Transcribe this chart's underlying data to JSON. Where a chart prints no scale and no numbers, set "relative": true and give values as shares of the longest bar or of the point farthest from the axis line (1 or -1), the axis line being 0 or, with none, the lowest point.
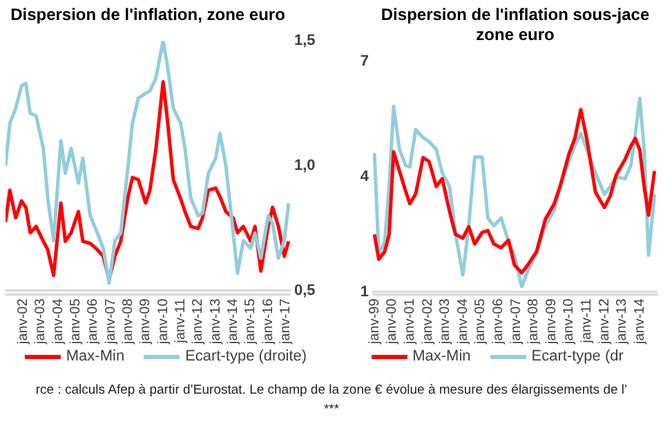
{
  "chart_data": [
    {
      "type": "line",
      "title": "Dispersion de l'inflation, zone euro",
      "annotations": [
        "rce : calculs Afep à partir d’Eurostat. Le champ de la zone € évolue à mesure des élargissements de l’",
        "***"
      ],
      "legend": "bottom",
      "marker": "none",
      "relative": true,
      "tick_labels": "x",
      "x": [
        "2001-01",
        "2001-04",
        "2001-08",
        "2001-12",
        "2002-03",
        "2002-06",
        "2002-10",
        "2003-03",
        "2003-06",
        "2003-10",
        "2004-03",
        "2004-06",
        "2004-10",
        "2005-03",
        "2005-06",
        "2005-11",
        "2006-04",
        "2006-08",
        "2006-12",
        "2007-04",
        "2007-08",
        "2008-01",
        "2008-04",
        "2008-08",
        "2009-01",
        "2009-04",
        "2009-08",
        "2010-01",
        "2010-04",
        "2010-08",
        "2011-01",
        "2011-04",
        "2011-08",
        "2012-01",
        "2012-04",
        "2012-08",
        "2013-01",
        "2013-04",
        "2013-08",
        "2014-01",
        "2014-04",
        "2014-08",
        "2015-01",
        "2015-04",
        "2015-08",
        "2016-01",
        "2016-04",
        "2016-08",
        "2016-12",
        "2017-03"
      ],
      "xlim": [
        "2001-01",
        "2017-04"
      ],
      "xticks": [
        {
          "value": "2002-01",
          "label": "janv-02"
        },
        {
          "value": "2003-01",
          "label": "janv-03"
        },
        {
          "value": "2004-01",
          "label": "janv-04"
        },
        {
          "value": "2005-01",
          "label": "janv-05"
        },
        {
          "value": "2006-01",
          "label": "janv-06"
        },
        {
          "value": "2007-01",
          "label": "janv-07"
        },
        {
          "value": "2008-01",
          "label": "janv-08"
        },
        {
          "value": "2009-01",
          "label": "janv-09"
        },
        {
          "value": "2010-01",
          "label": "janv-10"
        },
        {
          "value": "2011-01",
          "label": "janv-11"
        },
        {
          "value": "2012-01",
          "label": "janv-12"
        },
        {
          "value": "2013-01",
          "label": "janv-13"
        },
        {
          "value": "2014-01",
          "label": "janv-14"
        },
        {
          "value": "2015-01",
          "label": "janv-15"
        },
        {
          "value": "2016-01",
          "label": "janv-16"
        },
        {
          "value": "2017-01",
          "label": "janv-17"
        }
      ],
      "series": [
        {
          "name": "Max-Min",
          "color": "#ff0000",
          "values": [
            0.34,
            0.49,
            0.36,
            0.44,
            0.41,
            0.29,
            0.32,
            0.25,
            0.21,
            0.09,
            0.43,
            0.25,
            0.29,
            0.39,
            0.25,
            0.24,
            0.21,
            0.18,
            0.07,
            0.18,
            0.25,
            0.46,
            0.55,
            0.54,
            0.43,
            0.49,
            0.68,
            1.0,
            0.82,
            0.54,
            0.45,
            0.39,
            0.32,
            0.31,
            0.36,
            0.49,
            0.5,
            0.46,
            0.39,
            0.36,
            0.29,
            0.32,
            0.25,
            0.32,
            0.11,
            0.32,
            0.41,
            0.32,
            0.18,
            0.25
          ]
        }
      ]
    },
    {
      "type": "line",
      "legend": "bottom",
      "marker": "none",
      "tick_labels": "y",
      "x": [
        "2001-01",
        "2001-04",
        "2001-08",
        "2001-12",
        "2002-03",
        "2002-06",
        "2002-10",
        "2003-03",
        "2003-06",
        "2003-10",
        "2004-03",
        "2004-06",
        "2004-10",
        "2005-03",
        "2005-06",
        "2005-11",
        "2006-04",
        "2006-08",
        "2006-12",
        "2007-04",
        "2007-08",
        "2008-01",
        "2008-04",
        "2008-08",
        "2009-01",
        "2009-04",
        "2009-08",
        "2010-01",
        "2010-04",
        "2010-08",
        "2011-01",
        "2011-04",
        "2011-08",
        "2012-01",
        "2012-04",
        "2012-08",
        "2013-01",
        "2013-04",
        "2013-08",
        "2014-01",
        "2014-04",
        "2014-08",
        "2015-01",
        "2015-04",
        "2015-08",
        "2016-01",
        "2016-04",
        "2016-08",
        "2016-12",
        "2017-03"
      ],
      "xlim": [
        "2001-01",
        "2017-04"
      ],
      "y2lim": [
        0.5,
        1.5
      ],
      "y2ticks": [
        {
          "value": 0.5,
          "label": "0,5"
        },
        {
          "value": 1,
          "label": "1,0"
        },
        {
          "value": 1.5,
          "label": "1,5"
        }
      ],
      "series": [
        {
          "name": "Ecart-type (droite)",
          "color": "#92cddc",
          "axis": "y2",
          "values": [
            1.0,
            1.17,
            1.23,
            1.32,
            1.33,
            1.21,
            1.2,
            1.07,
            0.87,
            0.7,
            1.1,
            0.97,
            1.07,
            0.93,
            1.03,
            0.8,
            0.73,
            0.67,
            0.53,
            0.7,
            0.73,
            1.0,
            1.17,
            1.27,
            1.29,
            1.3,
            1.35,
            1.5,
            1.4,
            1.23,
            1.17,
            1.07,
            0.87,
            0.8,
            0.81,
            0.97,
            1.03,
            1.13,
            1.0,
            0.73,
            0.57,
            0.7,
            0.67,
            0.73,
            0.63,
            0.8,
            0.77,
            0.63,
            0.7,
            0.85
          ]
        }
      ]
    },
    {
      "type": "line",
      "legend": "bottom",
      "marker": "none",
      "tick_labels": "y",
      "x": [
        "1999-01",
        "1999-04",
        "1999-08",
        "1999-11",
        "2000-02",
        "2000-06",
        "2000-10",
        "2001-01",
        "2001-05",
        "2001-10",
        "2002-02",
        "2002-07",
        "2002-11",
        "2003-04",
        "2003-08",
        "2004-01",
        "2004-05",
        "2004-09",
        "2005-02",
        "2005-06",
        "2005-10",
        "2006-03",
        "2006-08",
        "2006-12",
        "2007-05",
        "2007-09",
        "2008-03",
        "2008-09",
        "2009-03",
        "2009-07",
        "2010-01",
        "2010-05",
        "2010-09",
        "2011-01",
        "2011-07",
        "2012-01",
        "2012-05",
        "2012-09",
        "2013-03",
        "2013-07",
        "2013-10",
        "2014-01",
        "2014-04",
        "2014-07",
        "2014-11"
      ],
      "xlim": [
        "1998-12",
        "2015-01"
      ],
      "ylim": [
        1,
        7
      ],
      "yticks": [
        1,
        4,
        7
      ],
      "series": [
        {
          "name": "Max-Min",
          "color": "#ff0000",
          "values": [
            2.5,
            1.85,
            2.05,
            2.5,
            4.65,
            4.15,
            3.65,
            3.3,
            3.55,
            4.5,
            4.4,
            3.75,
            3.95,
            3.1,
            2.5,
            2.4,
            2.7,
            2.25,
            2.55,
            2.6,
            2.25,
            2.15,
            2.35,
            1.7,
            1.5,
            1.7,
            2.05,
            2.9,
            3.3,
            3.75,
            4.6,
            5.0,
            5.75,
            5.0,
            3.6,
            3.2,
            3.5,
            4.05,
            4.45,
            4.8,
            5.0,
            4.7,
            3.75,
            3.0,
            4.15
          ]
        }
      ]
    },
    {
      "type": "line",
      "title": "Dispersion de l'inflation sous-jace\nzone euro",
      "legend": "bottom",
      "marker": "none",
      "relative": true,
      "tick_labels": "x",
      "x": [
        "1999-01",
        "1999-04",
        "1999-08",
        "1999-11",
        "2000-02",
        "2000-06",
        "2000-10",
        "2001-01",
        "2001-05",
        "2001-10",
        "2002-02",
        "2002-07",
        "2002-11",
        "2003-04",
        "2003-08",
        "2004-01",
        "2004-05",
        "2004-09",
        "2005-02",
        "2005-06",
        "2005-10",
        "2006-03",
        "2006-08",
        "2006-12",
        "2007-05",
        "2007-09",
        "2008-03",
        "2008-09",
        "2009-03",
        "2009-07",
        "2010-01",
        "2010-05",
        "2010-09",
        "2011-01",
        "2011-07",
        "2012-01",
        "2012-05",
        "2012-09",
        "2013-03",
        "2013-07",
        "2013-10",
        "2014-01",
        "2014-04",
        "2014-07",
        "2014-11"
      ],
      "xlim": [
        "1998-12",
        "2015-01"
      ],
      "xticks": [
        {
          "value": "1999-01",
          "label": "janv-99"
        },
        {
          "value": "2000-01",
          "label": "janv-00"
        },
        {
          "value": "2001-01",
          "label": "janv-01"
        },
        {
          "value": "2002-01",
          "label": "janv-02"
        },
        {
          "value": "2003-01",
          "label": "janv-03"
        },
        {
          "value": "2004-01",
          "label": "janv-04"
        },
        {
          "value": "2005-01",
          "label": "janv-05"
        },
        {
          "value": "2006-01",
          "label": "janv-06"
        },
        {
          "value": "2007-01",
          "label": "janv-07"
        },
        {
          "value": "2008-01",
          "label": "janv-08"
        },
        {
          "value": "2009-01",
          "label": "janv-09"
        },
        {
          "value": "2010-01",
          "label": "janv-10"
        },
        {
          "value": "2011-01",
          "label": "janv-11"
        },
        {
          "value": "2012-01",
          "label": "janv-12"
        },
        {
          "value": "2013-01",
          "label": "janv-13"
        },
        {
          "value": "2014-01",
          "label": "janv-14"
        }
      ],
      "series": [
        {
          "name": "Ecart-type (dr",
          "color": "#92cddc",
          "axis": "y2",
          "values": [
            0.72,
            0.2,
            0.27,
            0.55,
            0.96,
            0.74,
            0.66,
            0.65,
            0.84,
            0.8,
            0.78,
            0.74,
            0.62,
            0.55,
            0.31,
            0.1,
            0.35,
            0.7,
            0.7,
            0.39,
            0.35,
            0.39,
            0.27,
            0.2,
            0.04,
            0.12,
            0.21,
            0.35,
            0.43,
            0.55,
            0.68,
            0.76,
            0.82,
            0.74,
            0.62,
            0.51,
            0.55,
            0.6,
            0.59,
            0.66,
            0.82,
            1.0,
            0.74,
            0.2,
            0.51
          ]
        }
      ]
    }
  ]
}
